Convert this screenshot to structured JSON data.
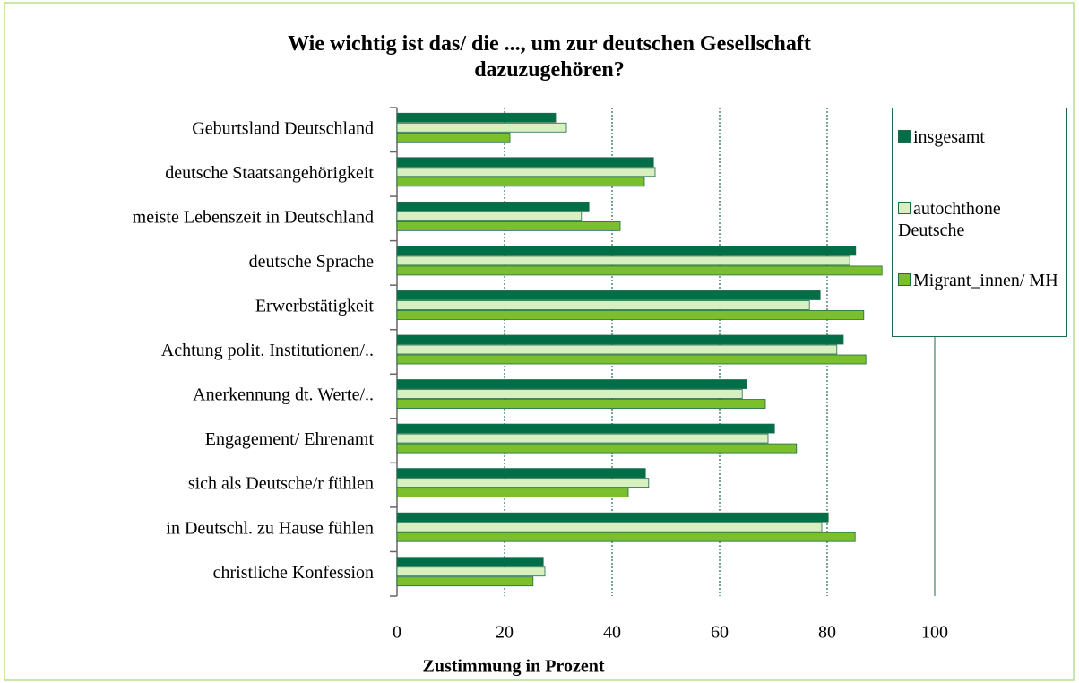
{
  "chart_data": {
    "type": "hbar",
    "title": "Wie wichtig ist das/ die ..., um zur deutschen Gesellschaft dazuzugehören?",
    "x_label": "Zustimmung in Prozent",
    "categories": [
      "Geburtsland Deutschland",
      "deutsche Staatsangehörigkeit",
      "meiste Lebenszeit in Deutschland",
      "deutsche Sprache",
      "Erwerbstätigkeit",
      "Achtung polit. Institutionen/..",
      "Anerkennung dt. Werte/..",
      "Engagement/ Ehrenamt",
      "sich als Deutsche/r fühlen",
      "in Deutschl. zu Hause fühlen",
      "christliche Konfession"
    ],
    "series": [
      {
        "name": "insgesamt",
        "color": "#006f47",
        "values": [
          29.5,
          47.7,
          35.7,
          85.3,
          78.7,
          83,
          65,
          70.2,
          46.2,
          80.2,
          27.2
        ]
      },
      {
        "name": "autochthone Deutsche",
        "color": "#d8f0c0",
        "values": [
          31.5,
          48,
          34.3,
          84.2,
          76.7,
          81.8,
          64.2,
          69,
          46.8,
          79,
          27.5
        ]
      },
      {
        "name": "Migrant_innen/ MH",
        "color": "#7cbf2c",
        "values": [
          21,
          46,
          41.5,
          90.2,
          86.8,
          87.2,
          68.5,
          74.3,
          43,
          85.2,
          25.3
        ]
      }
    ],
    "xlim": [
      0,
      100
    ],
    "xticks": [
      0,
      20,
      40,
      60,
      80,
      100
    ],
    "grid": true,
    "legend": "right"
  }
}
